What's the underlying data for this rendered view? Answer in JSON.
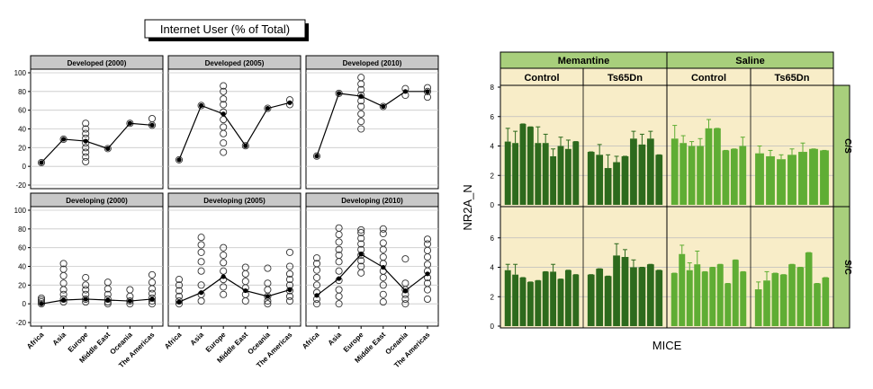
{
  "colors": {
    "panel_bg": "#f8edc8",
    "header_bg": "#a8cf7c",
    "bar_dark": "#2d6a1d",
    "bar_light": "#5fad34",
    "strip_bg": "#c8c8c8"
  },
  "chart_data": [
    {
      "type": "scatter",
      "title": "Internet User (% of Total)",
      "categories": [
        "Africa",
        "Asia",
        "Europe",
        "Middle East",
        "Oceania",
        "The Americas"
      ],
      "ylim": [
        -20,
        100
      ],
      "yticks": [
        "-20",
        "0",
        "20",
        "40",
        "60",
        "80",
        "100"
      ],
      "panels": [
        {
          "label": "Developed (2000)",
          "row": 0,
          "col": 0,
          "points": [
            [
              4
            ],
            [
              29
            ],
            [
              5,
              10,
              15,
              20,
              25,
              30,
              35,
              40,
              46
            ],
            [
              19
            ],
            [
              46
            ],
            [
              44,
              51
            ]
          ],
          "means": [
            4,
            29,
            27,
            19,
            46,
            44
          ]
        },
        {
          "label": "Developed (2005)",
          "row": 0,
          "col": 1,
          "points": [
            [
              7
            ],
            [
              65
            ],
            [
              15,
              25,
              35,
              42,
              50,
              58,
              66,
              72,
              80,
              86
            ],
            [
              22
            ],
            [
              62
            ],
            [
              66,
              71
            ]
          ],
          "means": [
            7,
            65,
            56,
            22,
            62,
            68
          ]
        },
        {
          "label": "Developed (2010)",
          "row": 0,
          "col": 2,
          "points": [
            [
              11
            ],
            [
              78
            ],
            [
              40,
              48,
              56,
              64,
              70,
              76,
              82,
              88,
              95
            ],
            [
              64
            ],
            [
              76,
              83
            ],
            [
              74,
              80,
              84
            ]
          ],
          "means": [
            11,
            78,
            75,
            64,
            80,
            80
          ]
        },
        {
          "label": "Developing (2000)",
          "row": 1,
          "col": 0,
          "points": [
            [
              0,
              2,
              4,
              6
            ],
            [
              2,
              5,
              10,
              15,
              22,
              30,
              37,
              43
            ],
            [
              2,
              5,
              10,
              15,
              20,
              28
            ],
            [
              0,
              2,
              5,
              10,
              16,
              23
            ],
            [
              0,
              3,
              8,
              15
            ],
            [
              0,
              3,
              6,
              11,
              16,
              23,
              31
            ]
          ],
          "means": [
            0,
            4,
            5,
            4,
            3,
            5
          ]
        },
        {
          "label": "Developing (2005)",
          "row": 1,
          "col": 1,
          "points": [
            [
              0,
              3,
              8,
              14,
              20,
              26
            ],
            [
              3,
              10,
              20,
              35,
              45,
              55,
              63,
              71
            ],
            [
              10,
              18,
              26,
              35,
              44,
              52,
              60
            ],
            [
              3,
              10,
              17,
              24,
              32,
              39
            ],
            [
              0,
              3,
              8,
              15,
              22,
              38
            ],
            [
              3,
              8,
              14,
              20,
              26,
              32,
              40,
              55
            ]
          ],
          "means": [
            2,
            12,
            29,
            14,
            8,
            15
          ]
        },
        {
          "label": "Developing (2010)",
          "row": 1,
          "col": 2,
          "points": [
            [
              0,
              5,
              12,
              20,
              28,
              36,
              43,
              49
            ],
            [
              0,
              8,
              15,
              25,
              35,
              45,
              52,
              58,
              66,
              74,
              81
            ],
            [
              33,
              40,
              46,
              52,
              58,
              64,
              70,
              76,
              79
            ],
            [
              2,
              10,
              20,
              28,
              35,
              43,
              50,
              58,
              65,
              75,
              80
            ],
            [
              0,
              5,
              10,
              15,
              22,
              48
            ],
            [
              5,
              15,
              22,
              28,
              35,
              42,
              50,
              57,
              64,
              69
            ]
          ],
          "means": [
            9,
            27,
            53,
            39,
            14,
            32
          ]
        }
      ]
    },
    {
      "type": "bar",
      "xlabel": "MICE",
      "ylabel": "NR2A_N",
      "ylim": [
        0,
        8
      ],
      "yticks": [
        "0",
        "2",
        "4",
        "6",
        "8"
      ],
      "treatments": [
        "Memantine",
        "Saline"
      ],
      "genotypes": [
        "Control",
        "Ts65Dn",
        "Control",
        "Ts65Dn"
      ],
      "rows": [
        "C/S",
        "S/C"
      ],
      "groups": [
        {
          "row": "C/S",
          "treatment": "Memantine",
          "genotype": "Control",
          "values": [
            4.3,
            4.2,
            5.5,
            5.3,
            4.2,
            4.2,
            3.3,
            4.0,
            3.8,
            4.3
          ],
          "errors": [
            0.9,
            0.8,
            0.0,
            0.0,
            1.1,
            0.6,
            0.5,
            0.6,
            0.6,
            0.0
          ]
        },
        {
          "row": "C/S",
          "treatment": "Memantine",
          "genotype": "Ts65Dn",
          "values": [
            3.6,
            3.4,
            2.5,
            2.9,
            3.3,
            4.5,
            4.1,
            4.5,
            3.4
          ],
          "errors": [
            0.0,
            0.7,
            0.9,
            0.4,
            0.0,
            0.5,
            0.7,
            0.5,
            0.0
          ]
        },
        {
          "row": "C/S",
          "treatment": "Saline",
          "genotype": "Control",
          "values": [
            4.5,
            4.2,
            4.0,
            4.0,
            5.2,
            5.2,
            3.7,
            3.8,
            4.0
          ],
          "errors": [
            0.9,
            0.5,
            0.3,
            0.5,
            0.6,
            0.0,
            0.0,
            0.0,
            0.6
          ]
        },
        {
          "row": "C/S",
          "treatment": "Saline",
          "genotype": "Ts65Dn",
          "values": [
            3.5,
            3.3,
            3.1,
            3.4,
            3.6,
            3.8,
            3.7
          ],
          "errors": [
            0.5,
            0.4,
            0.3,
            0.4,
            0.6,
            0.0,
            0.0
          ]
        },
        {
          "row": "S/C",
          "treatment": "Memantine",
          "genotype": "Control",
          "values": [
            3.8,
            3.5,
            3.3,
            3.0,
            3.1,
            3.7,
            3.7,
            3.2,
            3.8,
            3.5
          ],
          "errors": [
            0.4,
            0.7,
            0.0,
            0.0,
            0.0,
            0.0,
            0.5,
            0.0,
            0.0,
            0.0
          ]
        },
        {
          "row": "S/C",
          "treatment": "Memantine",
          "genotype": "Ts65Dn",
          "values": [
            3.5,
            3.9,
            3.4,
            4.8,
            4.7,
            4.0,
            4.0,
            4.2,
            3.8
          ],
          "errors": [
            0.0,
            0.0,
            0.0,
            0.8,
            0.5,
            0.5,
            0.0,
            0.0,
            0.0
          ]
        },
        {
          "row": "S/C",
          "treatment": "Saline",
          "genotype": "Control",
          "values": [
            3.6,
            4.9,
            3.8,
            4.2,
            3.7,
            4.0,
            4.2,
            2.9,
            4.5,
            3.7
          ],
          "errors": [
            0.0,
            0.6,
            0.5,
            0.9,
            0.0,
            0.0,
            0.0,
            0.0,
            0.0,
            0.0
          ]
        },
        {
          "row": "S/C",
          "treatment": "Saline",
          "genotype": "Ts65Dn",
          "values": [
            2.5,
            3.1,
            3.6,
            3.5,
            4.2,
            4.0,
            5.0,
            2.9,
            3.3
          ],
          "errors": [
            0.5,
            0.6,
            0.0,
            0.0,
            0.0,
            0.0,
            0.0,
            0.0,
            0.0
          ]
        }
      ]
    }
  ]
}
